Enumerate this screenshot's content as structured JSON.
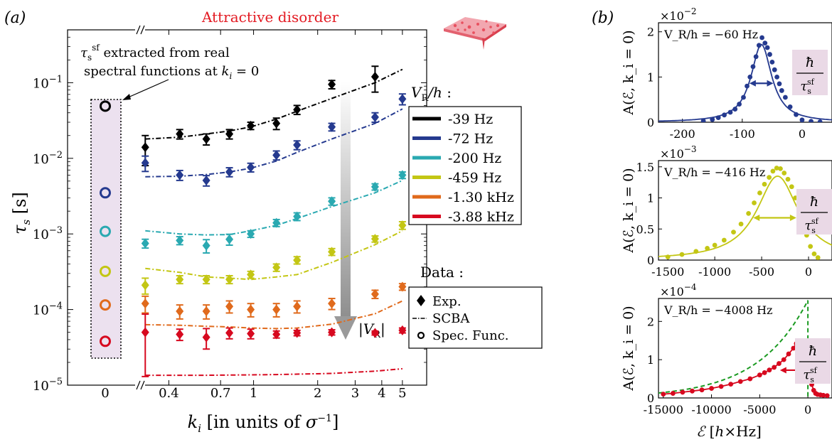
{
  "colors": {
    "black": "#000000",
    "navy": "#253a8f",
    "teal": "#2aa9b1",
    "olive": "#c3c614",
    "orange": "#e06a1c",
    "red": "#d7091f",
    "title_red": "#e31b23",
    "box_fill": "#ece1ef",
    "green": "#1a9a21",
    "label_bg": "#ead9e6"
  },
  "panel_a": {
    "label": "(a)",
    "title": "Attractive disorder",
    "inset_title": "Data :",
    "inset_items": [
      {
        "marker": "diamond",
        "label": "Exp."
      },
      {
        "marker": "dashdot",
        "label": "SCBA"
      },
      {
        "marker": "circle",
        "label": "Spec. Func."
      }
    ],
    "annotation": "τ_s^sf extracted from real spectral functions at k_i = 0",
    "arrow_label": "|V_R|",
    "ylabel": "τ_s [s]",
    "xlabel": "k_i [in units of σ^-1]",
    "legend_title": "V_R/h :",
    "zero_tick": "0"
  },
  "panel_b": {
    "label": "(b)",
    "ylabel": "A(ℰ, k_i = 0)",
    "xlabel": "ℰ [h×Hz]",
    "width_label": "ħ/τ_s^sf"
  },
  "chart_data": [
    {
      "type": "scatter",
      "title": "Attractive disorder",
      "xlabel": "k_i [in units of σ^-1]",
      "ylabel": "τ_s [s]",
      "xscale": "log",
      "yscale": "log",
      "xlim": [
        0.3,
        6.5
      ],
      "ylim": [
        1e-05,
        0.5
      ],
      "xticks": [
        0.4,
        0.7,
        1,
        2,
        3,
        4,
        5
      ],
      "xtick_labels": [
        "0.4",
        "0.7",
        "1",
        "2",
        "3",
        "4",
        "5"
      ],
      "yticks": [
        1e-05,
        0.0001,
        0.001,
        0.01,
        0.1
      ],
      "grid": false,
      "legend_position": "right",
      "x": [
        0.31,
        0.45,
        0.6,
        0.77,
        0.97,
        1.28,
        1.6,
        2.33,
        3.72,
        5.0
      ],
      "series": [
        {
          "name": "-39 Hz",
          "color_key": "black",
          "exp": [
            0.014,
            0.021,
            0.018,
            0.021,
            0.027,
            0.029,
            0.044,
            0.095,
            0.12,
            null
          ],
          "err": [
            0.006,
            0.003,
            0.003,
            0.003,
            0.003,
            0.005,
            0.006,
            0.012,
            0.045,
            null
          ],
          "scba": [
            0.018,
            0.019,
            0.021,
            0.023,
            0.026,
            0.033,
            0.042,
            0.062,
            0.1,
            0.15
          ],
          "spec_func": 0.049
        },
        {
          "name": "-72 Hz",
          "color_key": "navy",
          "exp": [
            0.0087,
            0.006,
            0.0051,
            0.0066,
            0.0076,
            0.011,
            0.015,
            0.026,
            0.035,
            0.061
          ],
          "err": [
            0.002,
            0.0009,
            0.0008,
            0.0009,
            0.001,
            0.0015,
            0.002,
            0.003,
            0.005,
            0.01
          ],
          "scba": [
            0.0057,
            0.0058,
            0.0061,
            0.0066,
            0.0074,
            0.0092,
            0.012,
            0.018,
            0.029,
            0.045
          ],
          "spec_func": 0.0035
        },
        {
          "name": "-200 Hz",
          "color_key": "teal",
          "exp": [
            0.00075,
            0.00082,
            0.0007,
            0.00085,
            0.001,
            0.0014,
            0.0017,
            0.0027,
            0.0042,
            0.006
          ],
          "err": [
            0.0001,
            0.0001,
            0.00014,
            0.00014,
            0.0001,
            0.00015,
            0.0002,
            0.0003,
            0.0004,
            0.0006
          ],
          "scba": [
            0.0011,
            0.001,
            0.00097,
            0.00098,
            0.0011,
            0.0013,
            0.0016,
            0.0023,
            0.0035,
            0.0051
          ],
          "spec_func": 0.00108
        },
        {
          "name": "-459 Hz",
          "color_key": "olive",
          "exp": [
            0.00021,
            0.00025,
            0.00025,
            0.00025,
            0.00029,
            0.00036,
            0.00045,
            0.00058,
            0.00086,
            0.0013
          ],
          "err": [
            5e-05,
            3e-05,
            3e-05,
            3e-05,
            3e-05,
            4e-05,
            5e-05,
            6e-05,
            8e-05,
            0.00015
          ],
          "scba": [
            0.00035,
            0.00031,
            0.00027,
            0.00026,
            0.00025,
            0.00027,
            0.00029,
            0.00042,
            0.00072,
            0.0011
          ],
          "spec_func": 0.00032
        },
        {
          "name": "-1.30 kHz",
          "color_key": "orange",
          "exp": [
            0.00012,
            9.5e-05,
            9.5e-05,
            0.00011,
            0.0001,
            0.0001,
            0.00011,
            0.00012,
            0.00016,
            0.0002
          ],
          "err": [
            3e-05,
            2e-05,
            2e-05,
            2e-05,
            2e-05,
            2e-05,
            2e-05,
            2e-05,
            2e-05,
            2e-05
          ],
          "scba": [
            6.3e-05,
            6.2e-05,
            6e-05,
            5.9e-05,
            5.7e-05,
            5.6e-05,
            5.7e-05,
            6.4e-05,
            8.8e-05,
            0.00013
          ],
          "spec_func": 0.000115
        },
        {
          "name": "-3.88 kHz",
          "color_key": "red",
          "exp": [
            5e-05,
            4.7e-05,
            4.3e-05,
            4.9e-05,
            4.8e-05,
            4.7e-05,
            4.9e-05,
            5e-05,
            4.9e-05,
            5.3e-05
          ],
          "err": [
            3.7e-05,
            8e-06,
            1.3e-05,
            8e-06,
            7e-06,
            5e-06,
            4e-06,
            4e-06,
            3e-06,
            4e-06
          ],
          "scba": [
            1.35e-05,
            1.35e-05,
            1.35e-05,
            1.36e-05,
            1.37e-05,
            1.38e-05,
            1.4e-05,
            1.43e-05,
            1.53e-05,
            1.65e-05
          ],
          "spec_func": 3.8e-05
        }
      ]
    },
    {
      "type": "line",
      "annotation": "V_R/h = −60 Hz",
      "xlim": [
        -240,
        50
      ],
      "ylim": [
        0,
        0.022
      ],
      "xticks": [
        -200,
        -100,
        0
      ],
      "xtick_labels": [
        "-200",
        "-100",
        "0"
      ],
      "yticks": [
        0,
        0.01,
        0.02
      ],
      "ytick_labels": [
        "0",
        "1",
        "2"
      ],
      "y_multiplier": "×10^-2",
      "color_key": "navy",
      "points_x": [
        -165,
        -150,
        -140,
        -130,
        -120,
        -112,
        -105,
        -98,
        -92,
        -87,
        -82,
        -77,
        -72,
        -67,
        -62,
        -58,
        -54,
        -50,
        -46,
        -42,
        -38,
        -34,
        -28,
        -20,
        -10,
        0,
        15,
        30
      ],
      "points_y": [
        0.0003,
        0.0006,
        0.001,
        0.0016,
        0.0022,
        0.0029,
        0.004,
        0.0055,
        0.008,
        0.01,
        0.0123,
        0.0145,
        0.017,
        0.0187,
        0.0175,
        0.0165,
        0.015,
        0.0133,
        0.0116,
        0.01,
        0.0085,
        0.007,
        0.0055,
        0.0034,
        0.0017,
        0.0005,
        0.0002,
        0.0001
      ],
      "fit_center": -68,
      "fit_gamma": 21,
      "fit_amp": 0.0172,
      "width_marker": [
        -88,
        -48
      ]
    },
    {
      "type": "line",
      "annotation": "V_R/h = −416 Hz",
      "xlim": [
        -1600,
        250
      ],
      "ylim": [
        0,
        0.0016
      ],
      "xticks": [
        -1500,
        -1000,
        -500,
        0
      ],
      "xtick_labels": [
        "-1500",
        "-1000",
        "-500",
        "0"
      ],
      "yticks": [
        0,
        0.0005,
        0.001,
        0.0015
      ],
      "ytick_labels": [
        "0",
        "0.5",
        "1",
        "1.5"
      ],
      "y_multiplier": "×10^-3",
      "color_key": "olive",
      "points_x": [
        -1500,
        -1350,
        -1200,
        -1080,
        -1000,
        -900,
        -800,
        -720,
        -640,
        -580,
        -520,
        -470,
        -420,
        -380,
        -340,
        -300,
        -260,
        -220,
        -180,
        -140,
        -100,
        -60,
        -20,
        20,
        60,
        100
      ],
      "points_y": [
        5e-05,
        9e-05,
        0.00014,
        0.00019,
        0.00024,
        0.00032,
        0.00045,
        0.00058,
        0.00075,
        0.00092,
        0.00108,
        0.00122,
        0.00133,
        0.00143,
        0.00148,
        0.00147,
        0.0014,
        0.0013,
        0.00118,
        0.001,
        0.00083,
        0.00065,
        0.0004,
        0.00022,
        0.0001,
        4e-05
      ],
      "fit_center": -330,
      "fit_gamma": 270,
      "fit_amp": 0.00135,
      "width_marker": [
        -590,
        -130
      ]
    },
    {
      "type": "line",
      "annotation": "V_R/h = −4008 Hz",
      "xlim": [
        -15500,
        2500
      ],
      "ylim": [
        0,
        0.00026
      ],
      "xticks": [
        -15000,
        -10000,
        -5000,
        0
      ],
      "xtick_labels": [
        "-15000",
        "-10000",
        "-5000",
        "0"
      ],
      "yticks": [
        0,
        0.0001,
        0.0002
      ],
      "ytick_labels": [
        "0",
        "1",
        "2"
      ],
      "y_multiplier": "×10^-4",
      "color_key": "red",
      "points_x": [
        -15000,
        -14000,
        -13000,
        -12000,
        -11000,
        -10000,
        -9000,
        -8000,
        -7000,
        -6000,
        -5000,
        -4500,
        -4000,
        -3500,
        -3000,
        -2500,
        -2000,
        -1500,
        -1200,
        -900,
        -600,
        -300,
        0,
        200,
        400,
        600,
        800,
        1000,
        1300,
        1600,
        2000
      ],
      "points_y": [
        1e-05,
        1.2e-05,
        1.5e-05,
        1.8e-05,
        2.1e-05,
        2.5e-05,
        3e-05,
        3.6e-05,
        4.3e-05,
        5e-05,
        6e-05,
        6.6e-05,
        7.3e-05,
        8e-05,
        9e-05,
        0.0001,
        0.000115,
        0.00013,
        0.000142,
        0.000145,
        0.00014,
        0.000125,
        9.5e-05,
        6e-05,
        3.5e-05,
        2e-05,
        1.2e-05,
        9e-06,
        8e-06,
        7e-06,
        6e-06
      ],
      "width_marker": [
        -2900,
        -300
      ],
      "green_dashed": "SCBA-like comparison (dashed green)"
    }
  ]
}
